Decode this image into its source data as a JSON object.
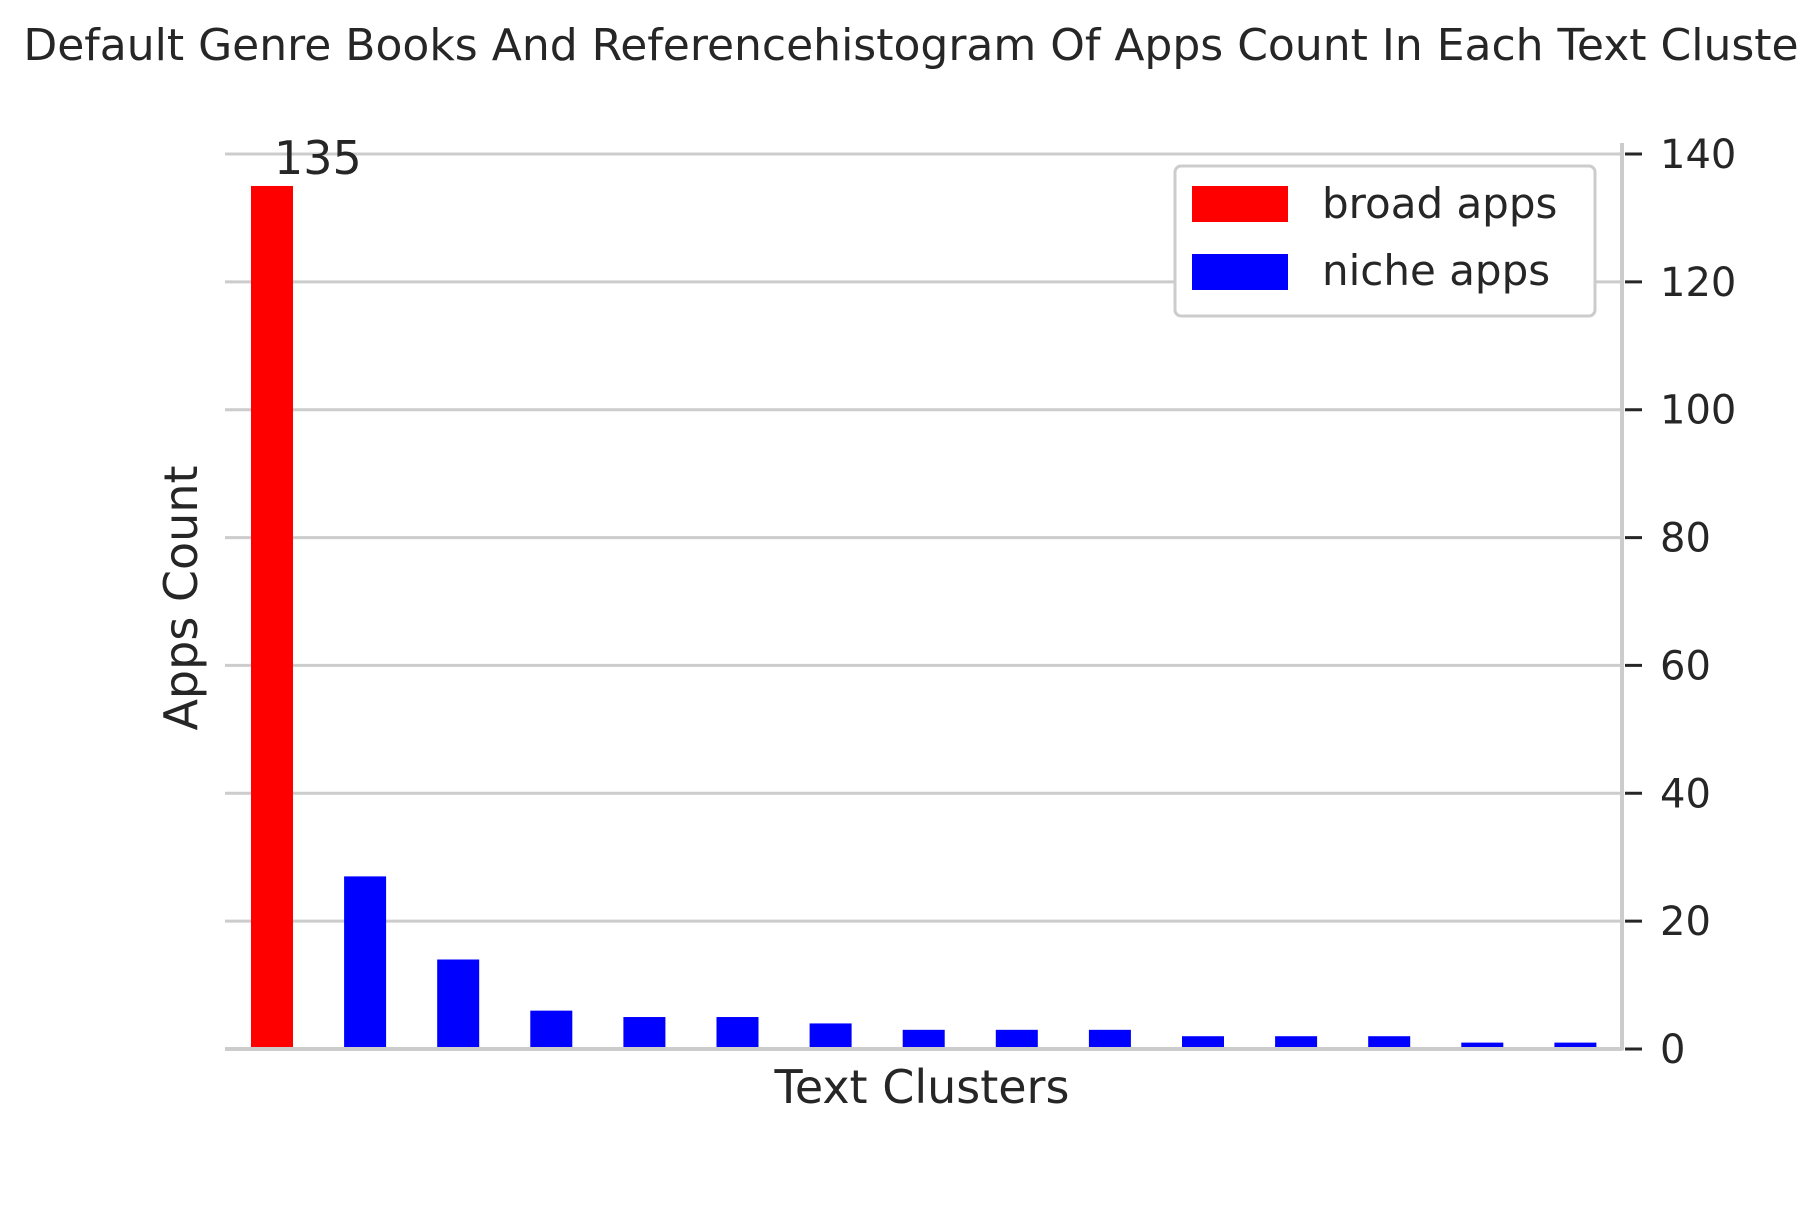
{
  "chart_data": {
    "type": "bar",
    "title": "Default Genre Books And Referencehistogram Of Apps Count In Each Text Cluster",
    "xlabel": "Text Clusters",
    "ylabel": "Apps Count",
    "ylim": [
      0,
      140
    ],
    "yticks": [
      0,
      20,
      40,
      60,
      80,
      100,
      120,
      140
    ],
    "y_axis_side": "right",
    "grid": "horizontal",
    "legend_position": "top-right",
    "series": [
      {
        "name": "broad apps",
        "color": "#ff0000",
        "values": [
          135,
          null,
          null,
          null,
          null,
          null,
          null,
          null,
          null,
          null,
          null,
          null,
          null,
          null,
          null
        ]
      },
      {
        "name": "niche apps",
        "color": "#0000ff",
        "values": [
          null,
          27,
          14,
          6,
          5,
          5,
          4,
          3,
          3,
          3,
          2,
          2,
          2,
          1,
          1
        ]
      }
    ],
    "bar_labels": [
      {
        "index": 0,
        "text": "135"
      }
    ]
  }
}
